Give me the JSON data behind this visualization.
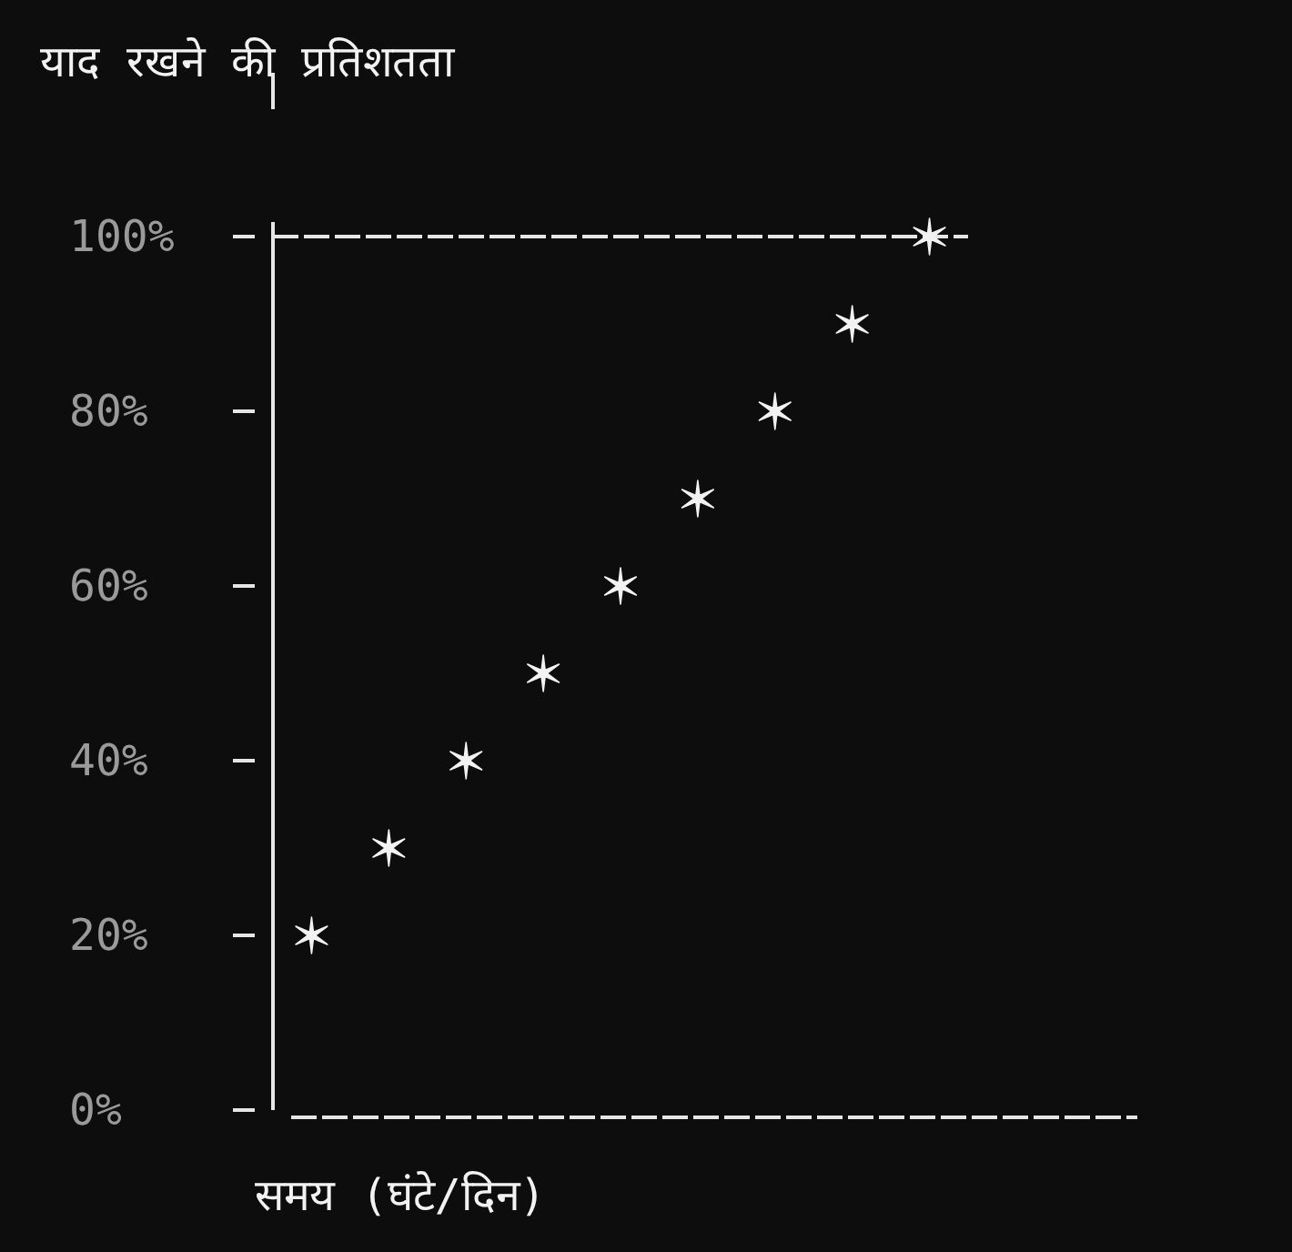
{
  "chart_data": {
    "type": "scatter",
    "ylabel": "याद रखने की प्रतिशतता",
    "xlabel": "समय (घंटे/दिन)",
    "categories": [
      null,
      null,
      null,
      null,
      null,
      null,
      null,
      null,
      null
    ],
    "series": [
      {
        "color": "#f2f2f2",
        "values": [
          20,
          30,
          40,
          50,
          60,
          70,
          80,
          90,
          100
        ]
      }
    ],
    "ylim": [
      0,
      100
    ],
    "yticks": [
      {
        "value": 0,
        "label": "0%"
      },
      {
        "value": 20,
        "label": "20%"
      },
      {
        "value": 40,
        "label": "40%"
      },
      {
        "value": 60,
        "label": "60%"
      },
      {
        "value": 80,
        "label": "80%"
      },
      {
        "value": 100,
        "label": "100%"
      }
    ],
    "tick_labels": "y",
    "marker": "cross",
    "grid": false,
    "ref_lines": [
      {
        "axis": "y",
        "value": 100,
        "line_style": "dashed",
        "color": "#e6e6e6"
      }
    ]
  }
}
